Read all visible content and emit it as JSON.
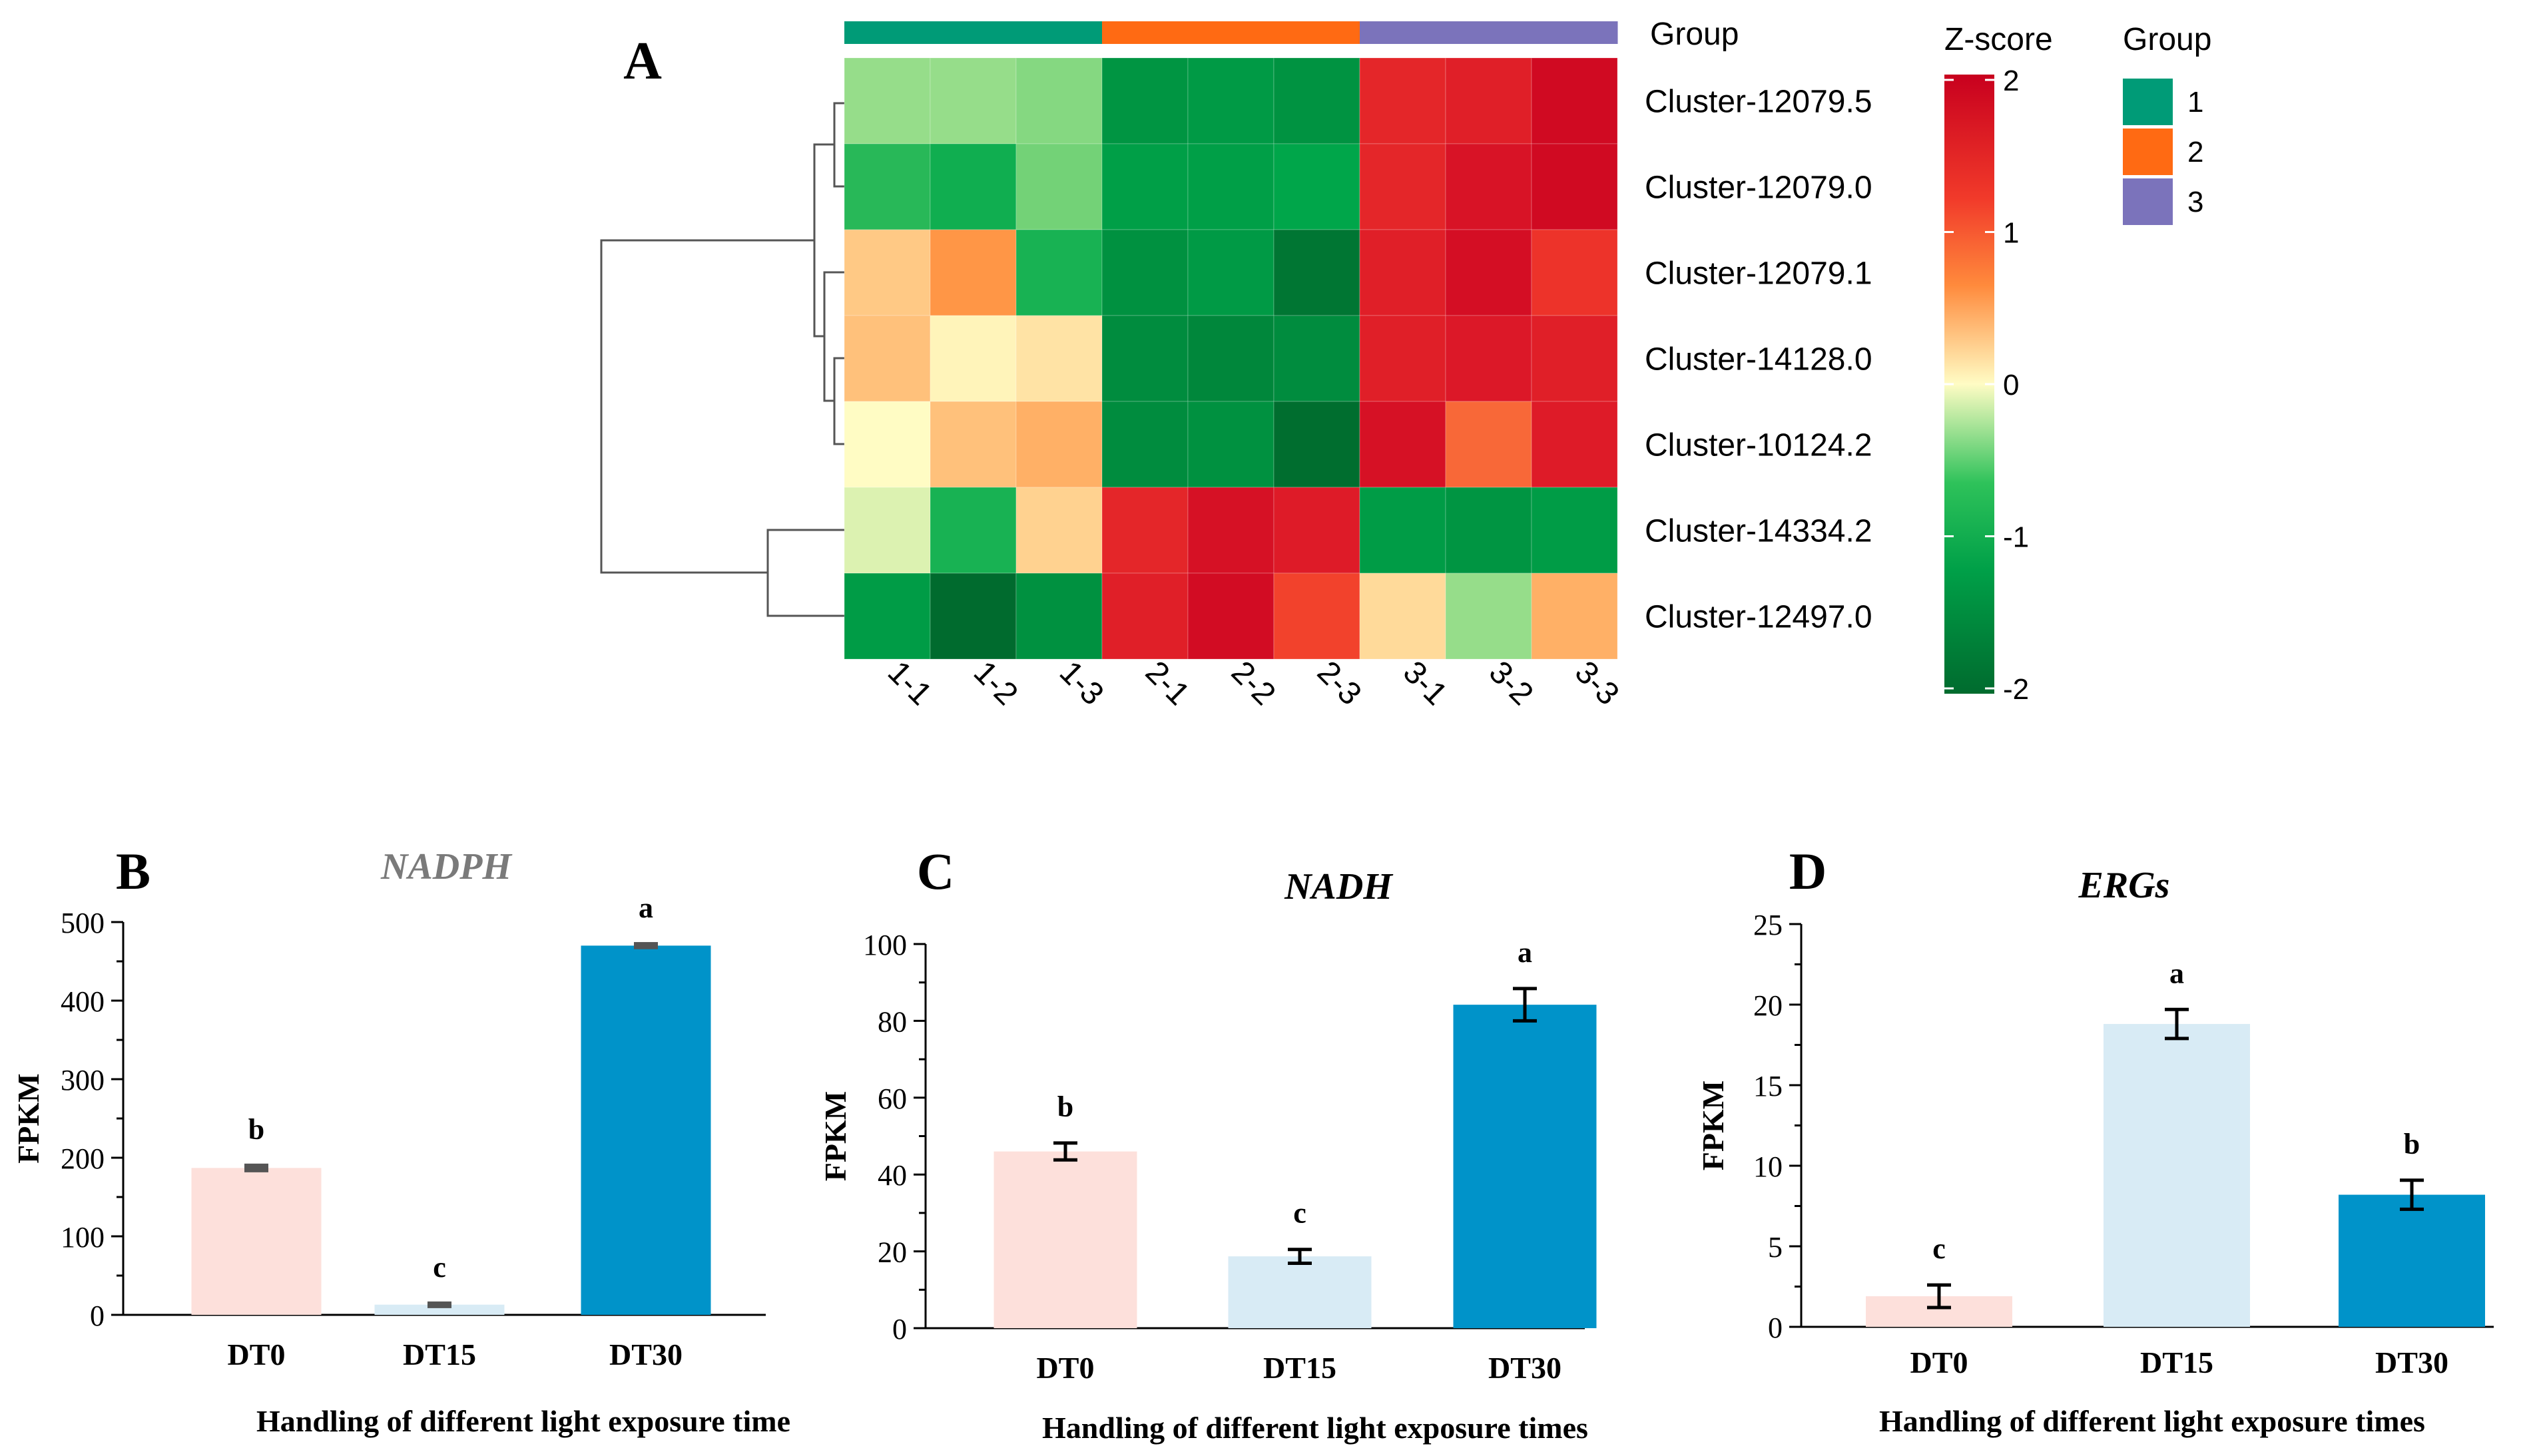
{
  "colors": {
    "group_1": "#009b77",
    "group_2": "#ff6a13",
    "group_3": "#7b73bb",
    "bar_DT0": "#fde0db",
    "bar_DT15": "#d8ebf5",
    "bar_DT30": "#0093c9",
    "heat_high": "#c8001e",
    "heat_mid": "#fffcc4",
    "heat_low": "#006b2e"
  },
  "chart_data": [
    {
      "panel": "A",
      "type": "heatmap",
      "columns": [
        "1-1",
        "1-2",
        "1-3",
        "2-1",
        "2-2",
        "2-3",
        "3-1",
        "3-2",
        "3-3"
      ],
      "column_groups": [
        "1",
        "1",
        "1",
        "2",
        "2",
        "2",
        "3",
        "3",
        "3"
      ],
      "rows": [
        "Cluster-12079.5",
        "Cluster-12079.0",
        "Cluster-12079.1",
        "Cluster-14128.0",
        "Cluster-10124.2",
        "Cluster-14334.2",
        "Cluster-12497.0"
      ],
      "values": [
        [
          -0.3,
          -0.3,
          -0.35,
          -1.4,
          -1.3,
          -1.45,
          1.5,
          1.6,
          2.0
        ],
        [
          -0.75,
          -0.9,
          -0.4,
          -1.2,
          -1.2,
          -1.05,
          1.5,
          1.8,
          2.0
        ],
        [
          0.3,
          0.6,
          -0.85,
          -1.5,
          -1.3,
          -2.0,
          1.6,
          1.9,
          1.3
        ],
        [
          0.35,
          0.05,
          0.15,
          -1.6,
          -1.7,
          -1.6,
          1.6,
          1.7,
          1.6
        ],
        [
          0.0,
          0.35,
          0.45,
          -1.6,
          -1.5,
          -2.15,
          1.85,
          0.9,
          1.65
        ],
        [
          -0.1,
          -0.85,
          0.25,
          1.5,
          1.85,
          1.65,
          -1.25,
          -1.4,
          -1.25
        ],
        [
          -1.25,
          -2.2,
          -1.5,
          1.6,
          1.95,
          1.15,
          0.2,
          -0.3,
          0.45
        ]
      ],
      "group_bar_label": "Group",
      "colorbar": {
        "title": "Z-score",
        "range": [
          -2,
          2
        ],
        "ticks": [
          "2",
          "1",
          "0",
          "-1",
          "-2"
        ]
      },
      "legend": {
        "title": "Group",
        "items": [
          "1",
          "2",
          "3"
        ]
      },
      "dendrogram": "rows"
    },
    {
      "panel": "B",
      "type": "bar",
      "title": "NADPH",
      "categories": [
        "DT0",
        "DT15",
        "DT30"
      ],
      "values": [
        187,
        13,
        470
      ],
      "errors": [
        3,
        1.5,
        2
      ],
      "letters": [
        "b",
        "c",
        "a"
      ],
      "ylabel": "FPKM",
      "xlabel": "Handling of different light exposure time",
      "ylim": [
        0,
        500
      ],
      "yticks": [
        "0",
        "100",
        "200",
        "300",
        "400",
        "500"
      ]
    },
    {
      "panel": "C",
      "type": "bar",
      "title": "NADH",
      "categories": [
        "DT0",
        "DT15",
        "DT30"
      ],
      "values": [
        46,
        18.7,
        84.2
      ],
      "errors": [
        2.2,
        1.8,
        4.2
      ],
      "letters": [
        "b",
        "c",
        "a"
      ],
      "ylabel": "FPKM",
      "xlabel": "Handling of different light exposure times",
      "ylim": [
        0,
        100
      ],
      "yticks": [
        "0",
        "20",
        "40",
        "60",
        "80",
        "100"
      ]
    },
    {
      "panel": "D",
      "type": "bar",
      "title": "ERGs",
      "categories": [
        "DT0",
        "DT15",
        "DT30"
      ],
      "values": [
        1.9,
        18.8,
        8.2
      ],
      "errors": [
        0.7,
        0.9,
        0.9
      ],
      "letters": [
        "c",
        "a",
        "b"
      ],
      "ylabel": "FPKM",
      "xlabel": "Handling of different light exposure times",
      "ylim": [
        0,
        25
      ],
      "yticks": [
        "0",
        "5",
        "10",
        "15",
        "20",
        "25"
      ]
    }
  ]
}
